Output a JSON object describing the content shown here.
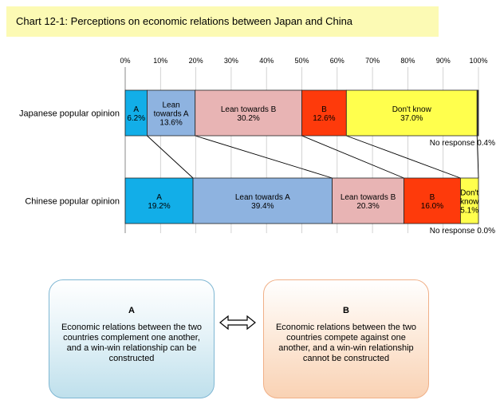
{
  "title": "Chart 12-1: Perceptions on economic relations between Japan and China",
  "chart_data": {
    "type": "bar",
    "orientation": "horizontal",
    "stacked": "percent",
    "xlim": [
      0,
      100
    ],
    "x_ticks": [
      "0%",
      "10%",
      "20%",
      "30%",
      "40%",
      "50%",
      "60%",
      "70%",
      "80%",
      "90%",
      "100%"
    ],
    "categories": [
      "Japanese popular opinion",
      "Chinese popular opinion"
    ],
    "series": [
      {
        "name": "A",
        "color": "#12aee8",
        "values": [
          6.2,
          19.2
        ],
        "labels": [
          "A\n6.2%",
          "A\n19.2%"
        ]
      },
      {
        "name": "Lean towards A",
        "color": "#8eb3e0",
        "values": [
          13.6,
          39.4
        ],
        "labels": [
          "Lean\ntowards A\n13.6%",
          "Lean towards A\n39.4%"
        ]
      },
      {
        "name": "Lean towards B",
        "color": "#e8b4b4",
        "values": [
          30.2,
          20.3
        ],
        "labels": [
          "Lean towards B\n30.2%",
          "Lean towards B\n20.3%"
        ]
      },
      {
        "name": "B",
        "color": "#fe3a0b",
        "values": [
          12.6,
          16.0
        ],
        "labels": [
          "B\n12.6%",
          "B\n16.0%"
        ]
      },
      {
        "name": "Don't know",
        "color": "#ffff4d",
        "values": [
          37.0,
          5.1
        ],
        "labels": [
          "Don't know\n37.0%",
          "Don't\nknow\n5.1%"
        ]
      },
      {
        "name": "No response",
        "color": "#3c3c3c",
        "values": [
          0.4,
          0.0
        ],
        "labels": [
          "No response 0.4%",
          "No response 0.0%"
        ]
      }
    ],
    "grid": true
  },
  "boxes": {
    "a": {
      "title": "A",
      "text": "Economic relations between the two countries complement one another, and a win-win relationship can be constructed"
    },
    "b": {
      "title": "B",
      "text": "Economic relations between the two countries compete against one another, and a win-win relationship cannot be constructed"
    }
  }
}
